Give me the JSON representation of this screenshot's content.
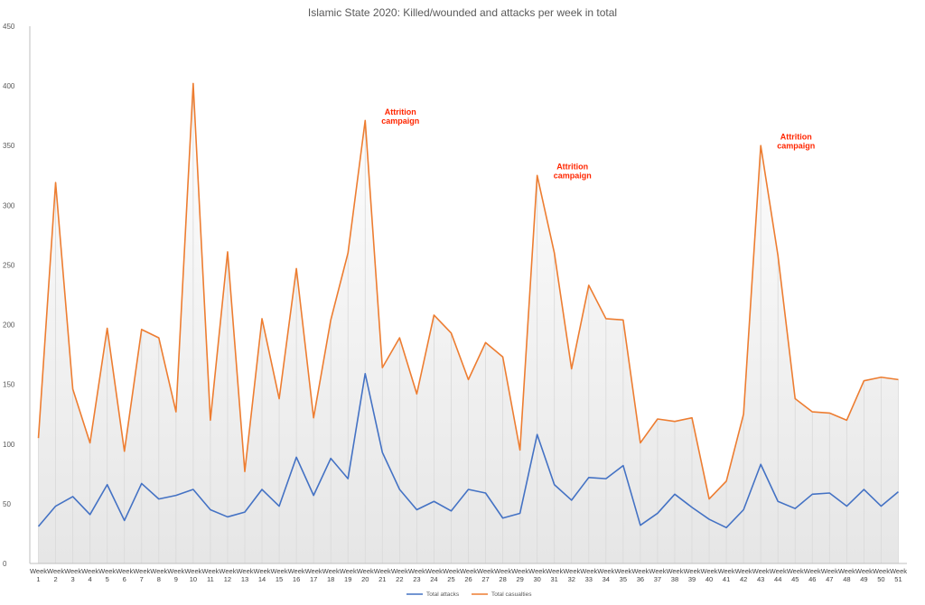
{
  "chart_data": {
    "type": "line",
    "title": "Islamic State 2020: Killed/wounded  and attacks per week in total",
    "xlabel": "",
    "ylabel": "",
    "ylim": [
      0,
      450
    ],
    "yticks": [
      0,
      50,
      100,
      150,
      200,
      250,
      300,
      350,
      400,
      450
    ],
    "grid": "vertical drop lines",
    "legend_position": "bottom-center",
    "categories": [
      "Week 1",
      "Week 2",
      "Week 3",
      "Week 4",
      "Week 5",
      "Week 6",
      "Week 7",
      "Week 8",
      "Week 9",
      "Week 10",
      "Week 11",
      "Week 12",
      "Week 13",
      "Week 14",
      "Week 15",
      "Week 16",
      "Week 17",
      "Week 18",
      "Week 19",
      "Week 20",
      "Week 21",
      "Week 22",
      "Week 23",
      "Week 24",
      "Week 25",
      "Week 26",
      "Week 27",
      "Week 28",
      "Week 29",
      "Week 30",
      "Week 31",
      "Week 32",
      "Week 33",
      "Week 34",
      "Week 35",
      "Week 36",
      "Week 37",
      "Week 38",
      "Week 39",
      "Week 40",
      "Week 41",
      "Week 42",
      "Week 43",
      "Week 44",
      "Week 45",
      "Week 46",
      "Week 47",
      "Week 48",
      "Week 49",
      "Week 50",
      "Week 51"
    ],
    "series": [
      {
        "name": "Total attacks",
        "color": "#4472C4",
        "values": [
          31,
          48,
          56,
          41,
          66,
          36,
          67,
          54,
          57,
          62,
          45,
          39,
          43,
          62,
          48,
          89,
          57,
          88,
          71,
          159,
          93,
          62,
          45,
          52,
          44,
          62,
          59,
          38,
          42,
          108,
          66,
          53,
          72,
          71,
          82,
          32,
          42,
          58,
          47,
          37,
          30,
          45,
          83,
          52,
          46,
          58,
          59,
          48,
          62,
          48,
          60
        ]
      },
      {
        "name": "Total casualties",
        "color": "#ED7D31",
        "values": [
          105,
          319,
          146,
          101,
          197,
          94,
          196,
          189,
          127,
          402,
          120,
          261,
          77,
          205,
          138,
          247,
          122,
          204,
          260,
          371,
          164,
          189,
          142,
          208,
          193,
          154,
          185,
          173,
          95,
          325,
          260,
          163,
          233,
          205,
          204,
          101,
          121,
          119,
          122,
          54,
          69,
          125,
          350,
          258,
          138,
          127,
          126,
          120,
          153,
          156,
          154
        ]
      }
    ],
    "annotations": [
      {
        "lines": [
          "Attrition",
          "campaign"
        ],
        "week_index": 20,
        "y": 376,
        "color": "#FF2600"
      },
      {
        "lines": [
          "Attrition",
          "campaign"
        ],
        "week_index": 30,
        "y": 330,
        "color": "#FF2600"
      },
      {
        "lines": [
          "Attrition",
          "campaign"
        ],
        "week_index": 43,
        "y": 355,
        "color": "#FF2600"
      }
    ],
    "styles": {
      "axis_color": "#bfbfbf",
      "drop_line_color": "#d9d9d9",
      "area_top_color": "#ffffff",
      "area_bottom_color": "#e6e6e6"
    }
  }
}
